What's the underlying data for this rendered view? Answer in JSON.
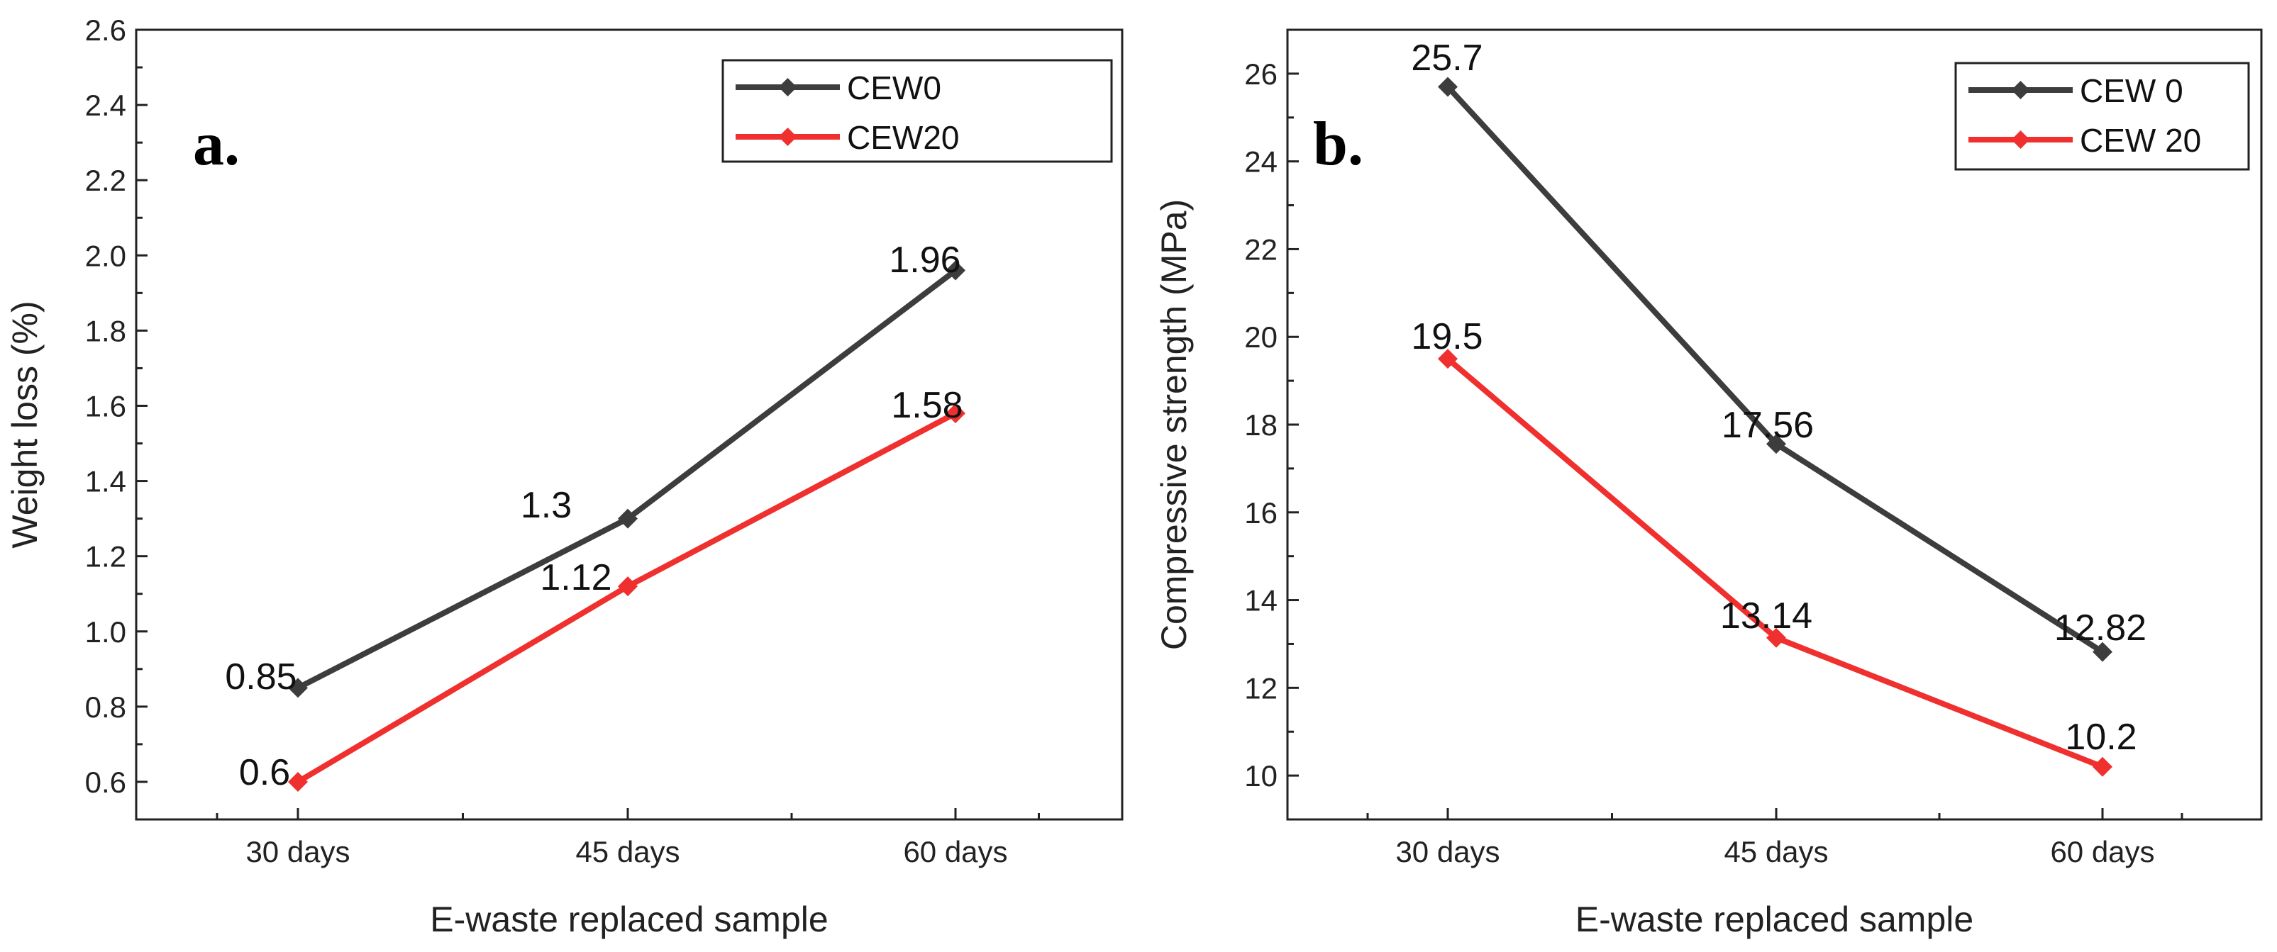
{
  "chart_data": [
    {
      "type": "line",
      "panel_label": "a.",
      "title": "",
      "xlabel": "E-waste replaced sample",
      "ylabel": "Weight loss (%)",
      "categories": [
        "30 days",
        "45 days",
        "60 days"
      ],
      "ylim": [
        0.5,
        2.6
      ],
      "yticks": [
        0.6,
        0.8,
        1.0,
        1.2,
        1.4,
        1.6,
        1.8,
        2.0,
        2.2,
        2.4,
        2.6
      ],
      "ytick_labels": [
        "0.6",
        "0.8",
        "1.0",
        "1.2",
        "1.4",
        "1.6",
        "1.8",
        "2.0",
        "2.2",
        "2.4",
        "2.6"
      ],
      "grid": false,
      "legend_position": "top-right",
      "series": [
        {
          "name": "CEW0",
          "color": "#3d3d3d",
          "values": [
            0.85,
            1.3,
            1.96
          ],
          "labels": [
            "0.85",
            "1.3",
            "1.96"
          ]
        },
        {
          "name": "CEW20",
          "color": "#f0302e",
          "values": [
            0.6,
            1.12,
            1.58
          ],
          "labels": [
            "0.6",
            "1.12",
            "1.58"
          ]
        }
      ]
    },
    {
      "type": "line",
      "panel_label": "b.",
      "title": "",
      "xlabel": "E-waste replaced sample",
      "ylabel": "Compressive strength (MPa)",
      "categories": [
        "30 days",
        "45 days",
        "60 days"
      ],
      "ylim": [
        9,
        27
      ],
      "yticks": [
        10,
        12,
        14,
        16,
        18,
        20,
        22,
        24,
        26
      ],
      "ytick_labels": [
        "10",
        "12",
        "14",
        "16",
        "18",
        "20",
        "22",
        "24",
        "26"
      ],
      "grid": false,
      "legend_position": "top-right",
      "series": [
        {
          "name": "CEW 0",
          "color": "#3d3d3d",
          "values": [
            25.7,
            17.56,
            12.82
          ],
          "labels": [
            "25.7",
            "17.56",
            "12.82"
          ]
        },
        {
          "name": "CEW 20",
          "color": "#f0302e",
          "values": [
            19.5,
            13.14,
            10.2
          ],
          "labels": [
            "19.5",
            "13.14",
            "10.2"
          ]
        }
      ]
    }
  ]
}
